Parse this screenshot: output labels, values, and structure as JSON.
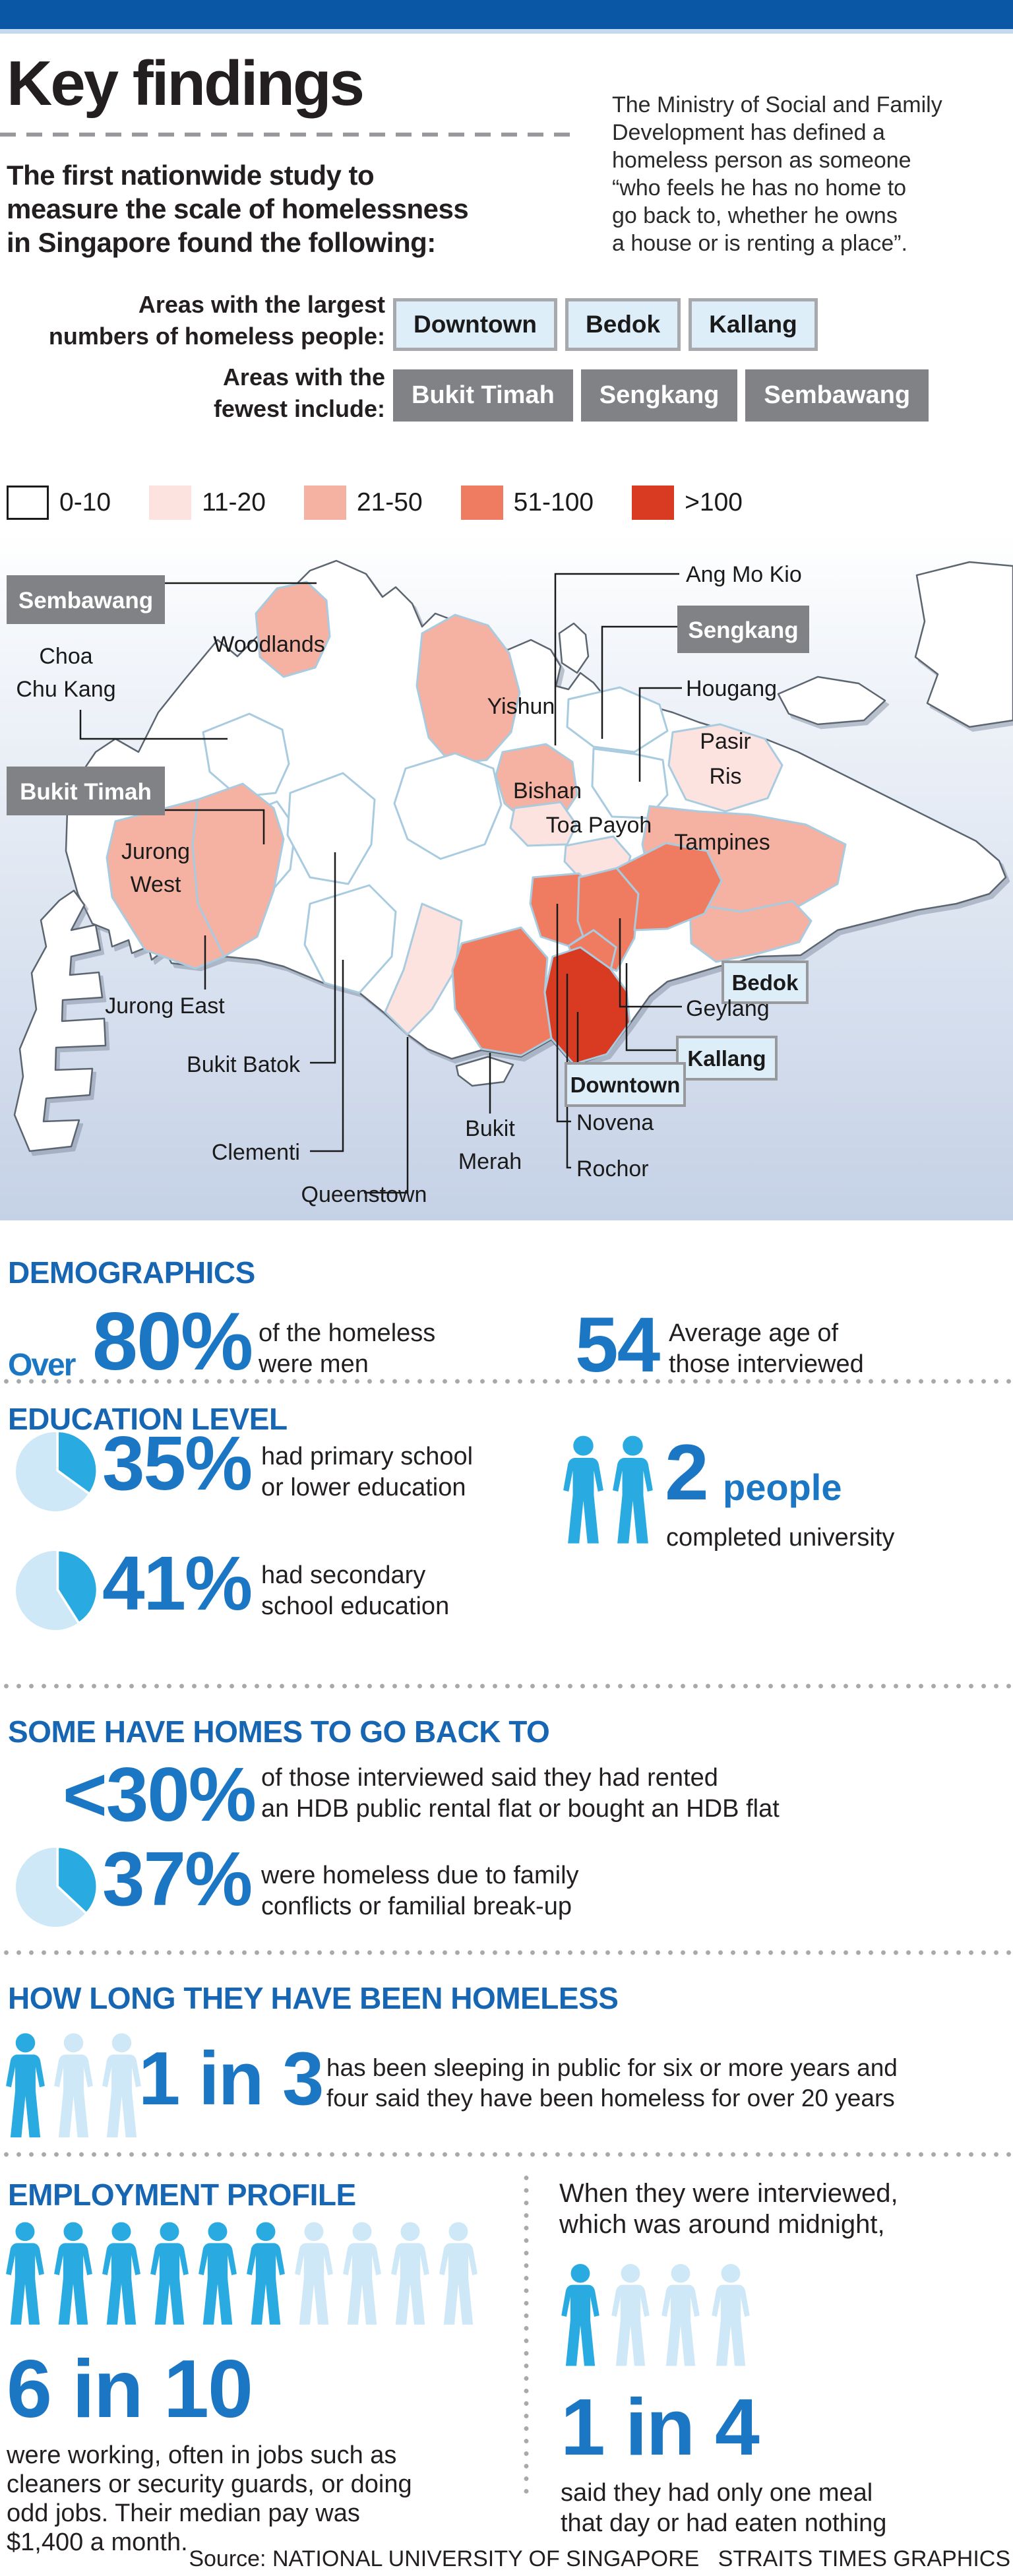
{
  "colors": {
    "topbar_blue": "#0a57a6",
    "header_blue": "#1666b3",
    "number_blue": "#1b77c4",
    "pictogram_cyan": "#29abe2",
    "pictogram_light": "#cfe8f8",
    "chip_blue_bg": "#ddeef9",
    "box_gray": "#808285",
    "map_red_max": "#d93a22",
    "sea_blue": "#c5d1e6"
  },
  "header": {
    "title": "Key findings",
    "intro_lines": [
      "The first nationwide study to",
      "measure the scale of homelessness",
      "in Singapore found the following:"
    ],
    "ministry_lines": [
      "The Ministry of Social and Family",
      "Development has defined a",
      "homeless person as someone",
      "“who feels he has no home to",
      "go back to, whether he owns",
      "a house or is renting a place”."
    ]
  },
  "areas": {
    "largest_label_lines": [
      "Areas with the largest",
      "numbers of homeless people:"
    ],
    "largest": [
      "Downtown",
      "Bedok",
      "Kallang"
    ],
    "fewest_label_lines": [
      "Areas with the",
      "fewest include:"
    ],
    "fewest": [
      "Bukit Timah",
      "Sengkang",
      "Sembawang"
    ]
  },
  "legend": {
    "items": [
      {
        "label": "0-10",
        "color": "#ffffff"
      },
      {
        "label": "11-20",
        "color": "#fce3e0"
      },
      {
        "label": "21-50",
        "color": "#f5b1a1"
      },
      {
        "label": "51-100",
        "color": "#ef7c61"
      },
      {
        "label": ">100",
        "color": "#d93a22"
      }
    ]
  },
  "map": {
    "labels": {
      "sembawang": "Sembawang",
      "choa_chu_kang": [
        "Choa",
        "Chu Kang"
      ],
      "woodlands": "Woodlands",
      "yishun": "Yishun",
      "ang_mo_kio": "Ang Mo Kio",
      "sengkang": "Sengkang",
      "hougang": "Hougang",
      "pasir_ris": [
        "Pasir",
        "Ris"
      ],
      "bukit_timah": "Bukit Timah",
      "jurong_west": [
        "Jurong",
        "West"
      ],
      "bishan": "Bishan",
      "toa_payoh": "Toa Payoh",
      "tampines": "Tampines",
      "jurong_east": "Jurong East",
      "bukit_batok": "Bukit Batok",
      "clementi": "Clementi",
      "queenstown": "Queenstown",
      "bukit_merah": [
        "Bukit",
        "Merah"
      ],
      "novena": "Novena",
      "rochor": "Rochor",
      "bedok": "Bedok",
      "geylang": "Geylang",
      "kallang": "Kallang",
      "downtown": "Downtown"
    }
  },
  "demographics": {
    "header": "DEMOGRAPHICS",
    "men_prefix": "Over",
    "men_value": "80%",
    "men_desc_lines": [
      "of the homeless",
      "were men"
    ],
    "age_value": "54",
    "age_desc_lines": [
      "Average age of",
      "those interviewed"
    ]
  },
  "education": {
    "header": "EDUCATION LEVEL",
    "primary": {
      "percent_label": "35%",
      "percent_value": 35,
      "desc_lines": [
        "had primary school",
        "or lower education"
      ]
    },
    "secondary": {
      "percent_label": "41%",
      "percent_value": 41,
      "desc_lines": [
        "had secondary",
        "school education"
      ]
    },
    "university": {
      "value": "2",
      "unit": "people",
      "desc": "completed university",
      "pictogram": {
        "total": 2,
        "filled": 2
      }
    }
  },
  "homes": {
    "header": "SOME HAVE HOMES TO GO BACK TO",
    "rented_value": "<30%",
    "rented_desc_lines": [
      "of those interviewed said they had rented",
      "an HDB public rental flat or bought an HDB flat"
    ],
    "family": {
      "percent_label": "37%",
      "percent_value": 37,
      "desc_lines": [
        "were homeless due to family",
        "conflicts or familial break-up"
      ]
    }
  },
  "duration": {
    "header": "HOW LONG THEY HAVE BEEN HOMELESS",
    "pictogram": {
      "total": 3,
      "filled": 1
    },
    "stat": "1 in 3",
    "desc_lines": [
      "has been sleeping in public for six or more years and",
      "four said they have been homeless for over 20 years"
    ]
  },
  "employment": {
    "header": "EMPLOYMENT PROFILE",
    "pictogram": {
      "total": 10,
      "filled": 6
    },
    "stat": "6 in 10",
    "desc_lines": [
      "were working, often in jobs such as",
      "cleaners or security guards, or doing",
      "odd jobs. Their median pay was",
      "$1,400 a month."
    ]
  },
  "midnight": {
    "intro_lines": [
      "When they were interviewed,",
      "which was around midnight,"
    ],
    "pictogram": {
      "total": 4,
      "filled": 1
    },
    "stat": "1 in 4",
    "desc_lines": [
      "said they had only one meal",
      "that day or had eaten nothing"
    ]
  },
  "source": "Source: NATIONAL UNIVERSITY OF SINGAPORE   STRAITS TIMES GRAPHICS"
}
